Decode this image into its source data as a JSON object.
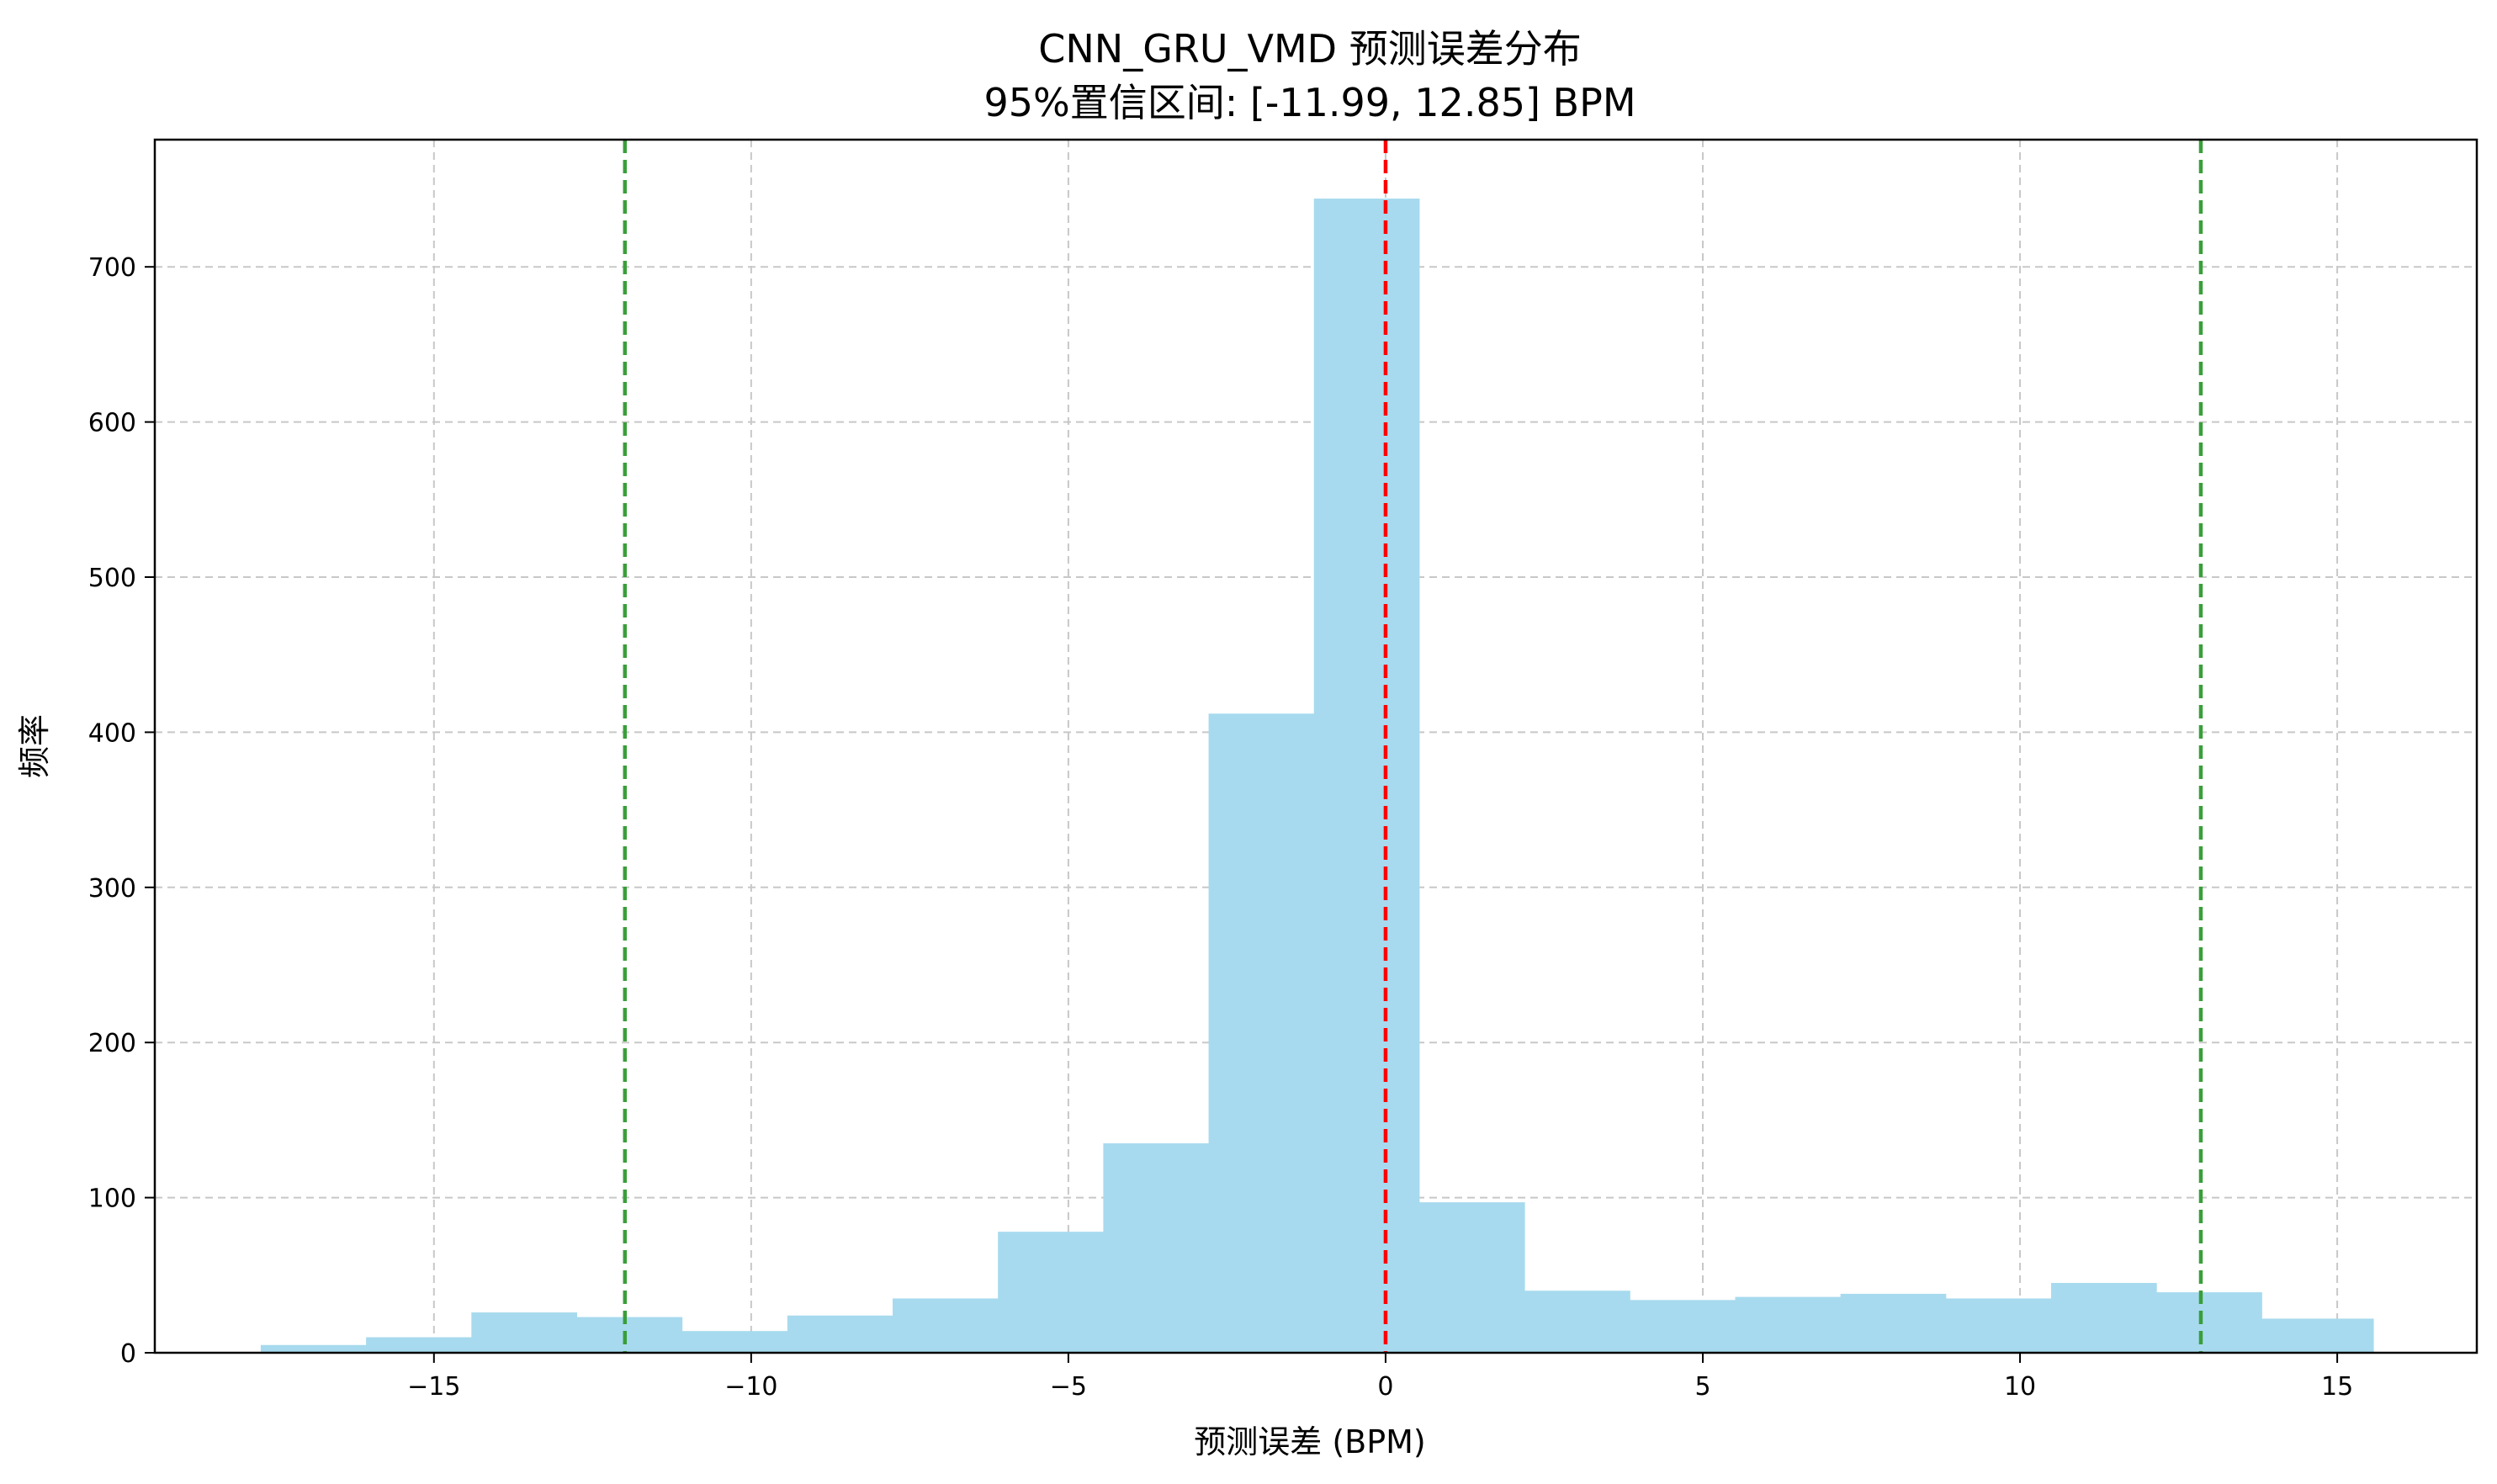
{
  "chart_data": {
    "type": "bar",
    "title": "CNN_GRU_VMD 预测误差分布",
    "subtitle": "95%置信区间: [-11.99, 12.85] BPM",
    "xlabel": "预测误差 (BPM)",
    "ylabel": "频率",
    "xlim": [
      -19.4,
      17.2
    ],
    "ylim": [
      0,
      782
    ],
    "xticks": [
      -15,
      -10,
      -5,
      0,
      5,
      10,
      15
    ],
    "xtick_labels": [
      "−15",
      "−10",
      "−5",
      "0",
      "5",
      "10",
      "15"
    ],
    "yticks": [
      0,
      100,
      200,
      300,
      400,
      500,
      600,
      700
    ],
    "grid": true,
    "bar_color": "#a7daee",
    "bins": [
      {
        "x0": -17.73,
        "x1": -16.07,
        "value": 5
      },
      {
        "x0": -16.07,
        "x1": -14.41,
        "value": 10
      },
      {
        "x0": -14.41,
        "x1": -12.75,
        "value": 26
      },
      {
        "x0": -12.75,
        "x1": -11.09,
        "value": 23
      },
      {
        "x0": -11.09,
        "x1": -9.43,
        "value": 14
      },
      {
        "x0": -9.43,
        "x1": -7.77,
        "value": 24
      },
      {
        "x0": -7.77,
        "x1": -6.11,
        "value": 35
      },
      {
        "x0": -6.11,
        "x1": -4.45,
        "value": 78
      },
      {
        "x0": -4.45,
        "x1": -2.79,
        "value": 135
      },
      {
        "x0": -2.79,
        "x1": -1.13,
        "value": 412
      },
      {
        "x0": -1.13,
        "x1": 0.53,
        "value": 744
      },
      {
        "x0": 0.53,
        "x1": 2.19,
        "value": 97
      },
      {
        "x0": 2.19,
        "x1": 3.85,
        "value": 40
      },
      {
        "x0": 3.85,
        "x1": 5.51,
        "value": 34
      },
      {
        "x0": 5.51,
        "x1": 7.17,
        "value": 36
      },
      {
        "x0": 7.17,
        "x1": 8.83,
        "value": 38
      },
      {
        "x0": 8.83,
        "x1": 10.49,
        "value": 35
      },
      {
        "x0": 10.49,
        "x1": 12.15,
        "value": 45
      },
      {
        "x0": 12.15,
        "x1": 13.81,
        "value": 39
      },
      {
        "x0": 13.81,
        "x1": 15.57,
        "value": 22
      }
    ],
    "reference_lines": [
      {
        "x": -11.99,
        "color": "#3a9e3a"
      },
      {
        "x": 0,
        "color": "#ff0000"
      },
      {
        "x": 12.85,
        "color": "#3a9e3a"
      }
    ]
  }
}
